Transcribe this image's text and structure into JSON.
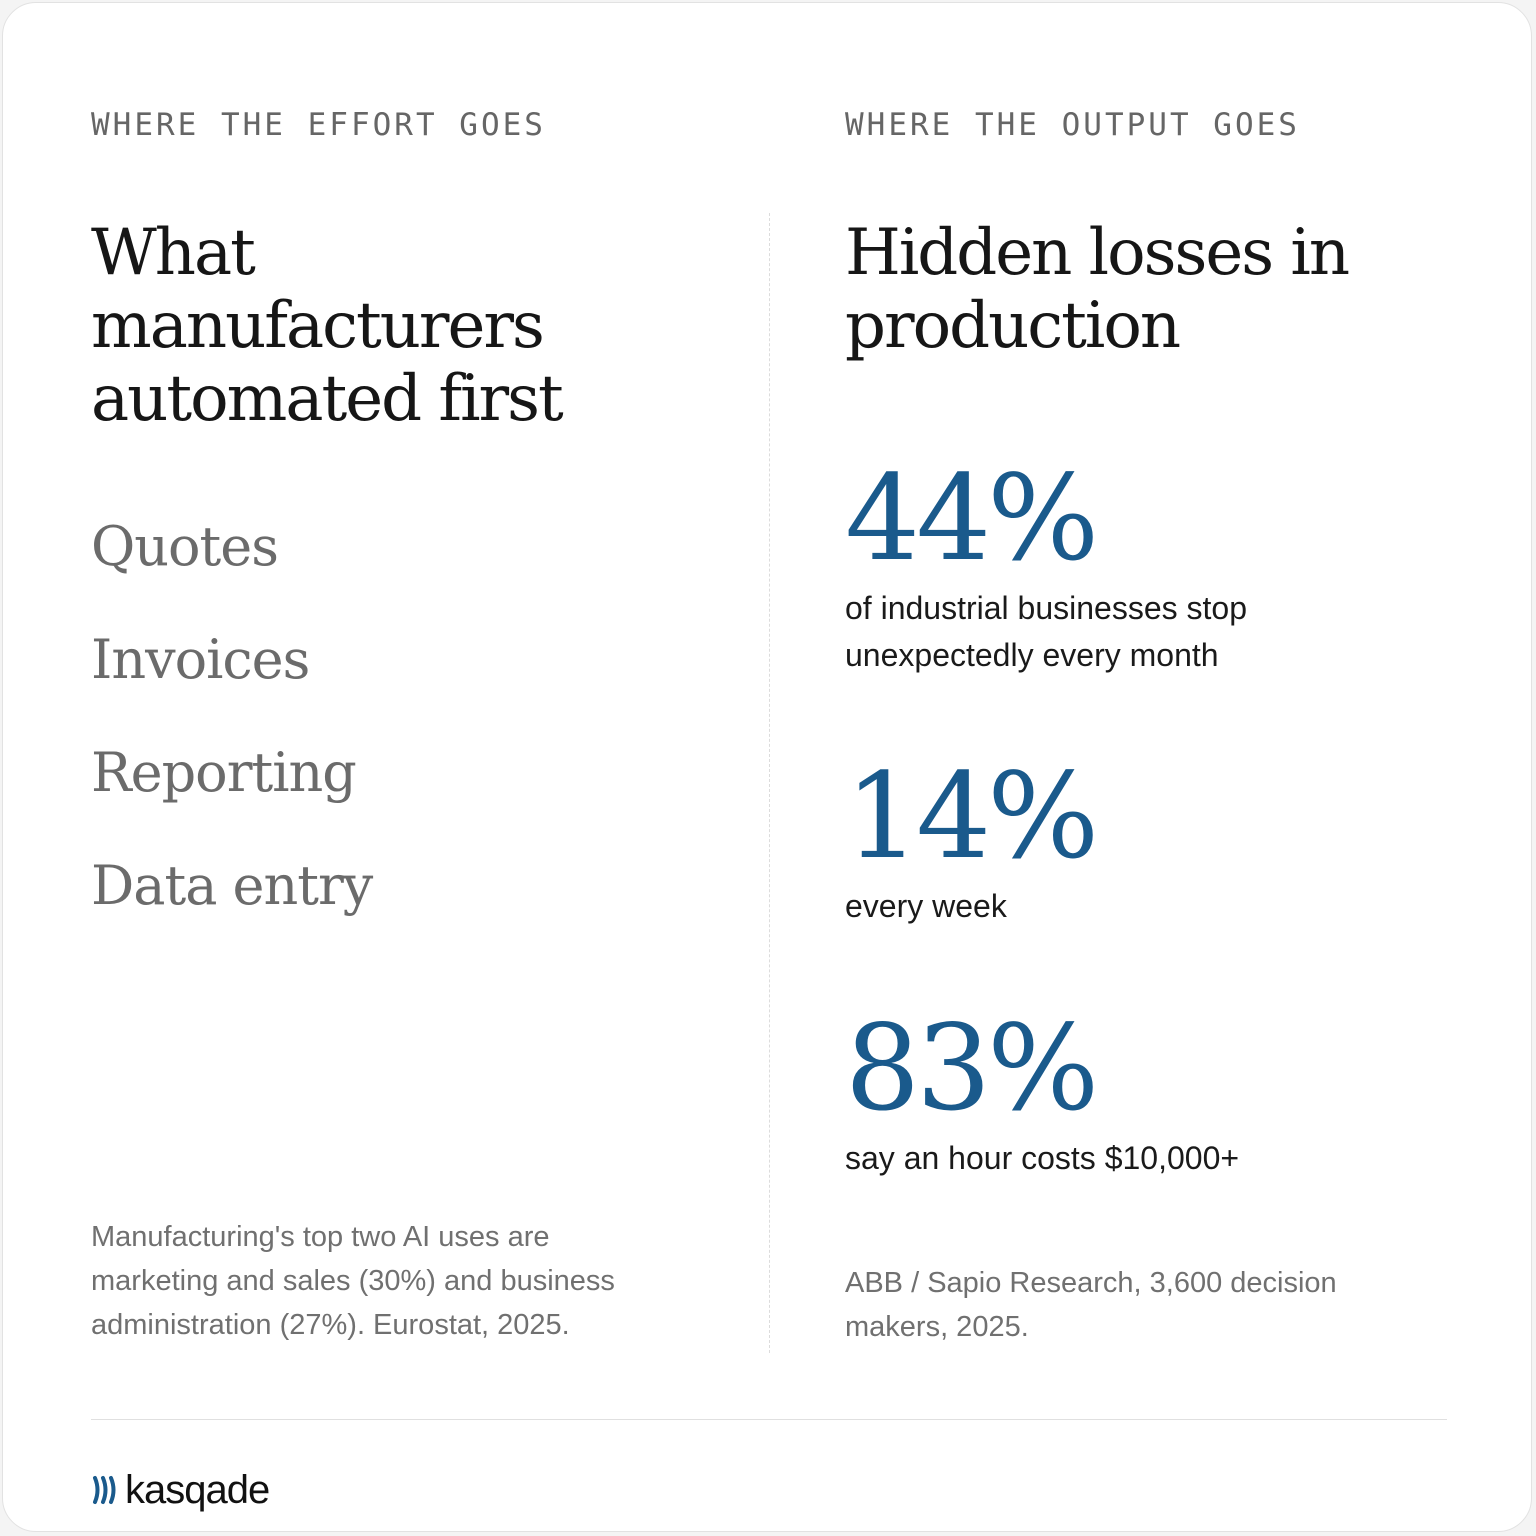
{
  "colors": {
    "accent": "#1a5a8c",
    "text": "#161616",
    "muted": "#6b6b6b"
  },
  "left": {
    "eyebrow": "WHERE THE EFFORT GOES",
    "title_lines": [
      "What",
      "manufacturers",
      "automated first"
    ],
    "tasks": [
      "Quotes",
      "Invoices",
      "Reporting",
      "Data entry"
    ],
    "note_lines": [
      "Manufacturing's top two AI uses are",
      "marketing and sales (30%) and business",
      "administration (27%). Eurostat, 2025."
    ]
  },
  "right": {
    "eyebrow": "WHERE THE OUTPUT GOES",
    "title_lines": [
      "Hidden losses in",
      "production"
    ],
    "stats": [
      {
        "value": "44%",
        "label_lines": [
          "of industrial businesses stop",
          "unexpectedly every month"
        ]
      },
      {
        "value": "14%",
        "label_lines": [
          "every week"
        ]
      },
      {
        "value": "83%",
        "label_lines": [
          "say an hour costs $10,000+"
        ]
      }
    ],
    "note_lines": [
      "ABB / Sapio Research, 3,600 decision",
      "makers, 2025."
    ]
  },
  "footer": {
    "logo_icon": "wave-stripes-icon",
    "brand": "kasqade"
  }
}
